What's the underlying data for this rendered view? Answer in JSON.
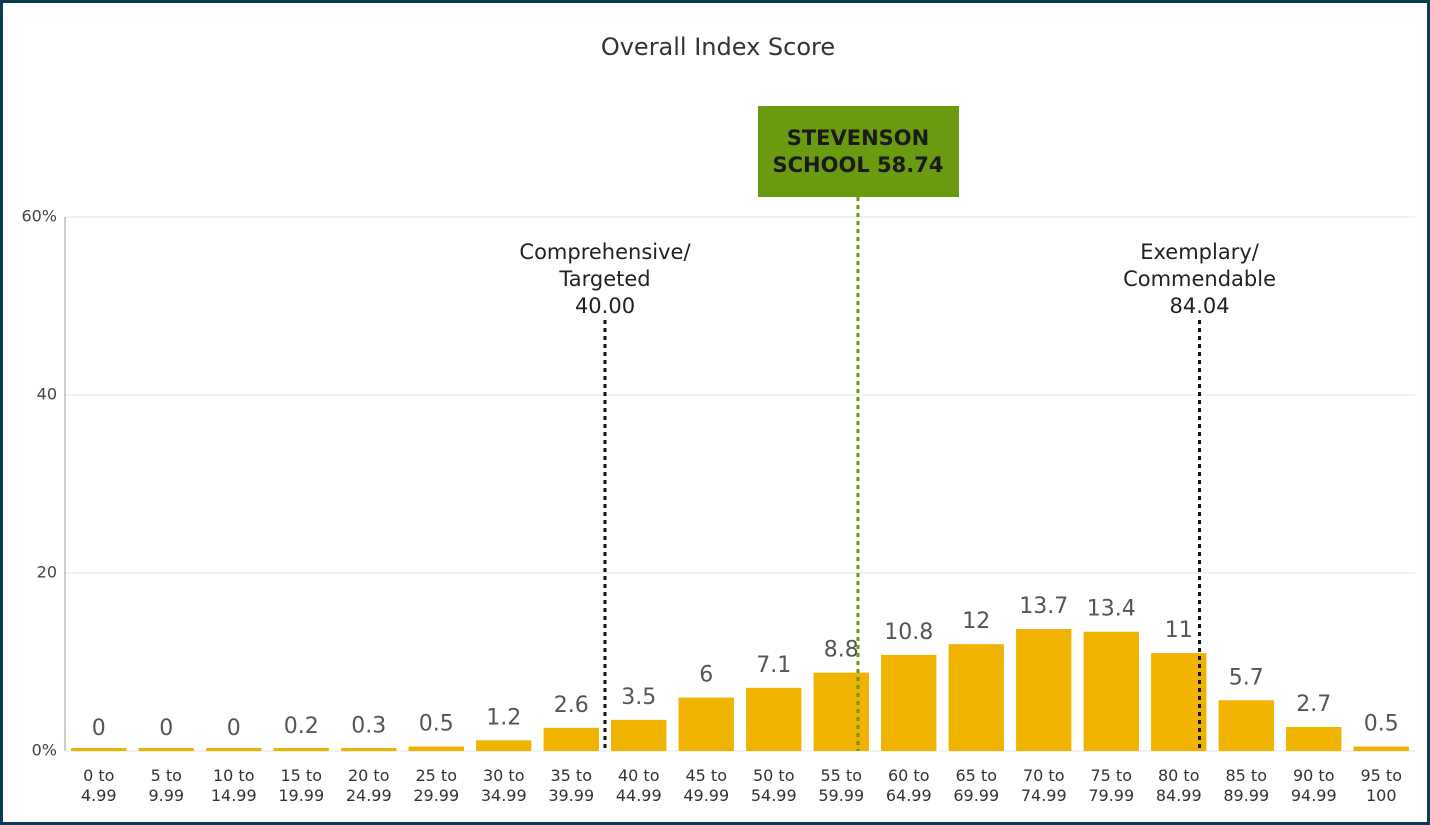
{
  "chart_data": {
    "type": "bar",
    "title": "Overall Index Score",
    "categories": [
      [
        "0 to",
        "4.99"
      ],
      [
        "5 to",
        "9.99"
      ],
      [
        "10 to",
        "14.99"
      ],
      [
        "15 to",
        "19.99"
      ],
      [
        "20 to",
        "24.99"
      ],
      [
        "25 to",
        "29.99"
      ],
      [
        "30 to",
        "34.99"
      ],
      [
        "35 to",
        "39.99"
      ],
      [
        "40 to",
        "44.99"
      ],
      [
        "45 to",
        "49.99"
      ],
      [
        "50 to",
        "54.99"
      ],
      [
        "55 to",
        "59.99"
      ],
      [
        "60 to",
        "64.99"
      ],
      [
        "65 to",
        "69.99"
      ],
      [
        "70 to",
        "74.99"
      ],
      [
        "75 to",
        "79.99"
      ],
      [
        "80 to",
        "84.99"
      ],
      [
        "85 to",
        "89.99"
      ],
      [
        "90 to",
        "94.99"
      ],
      [
        "95 to",
        "100"
      ]
    ],
    "values": [
      0,
      0,
      0,
      0.2,
      0.3,
      0.5,
      1.2,
      2.6,
      3.5,
      6,
      7.1,
      8.8,
      10.8,
      12,
      13.7,
      13.4,
      11,
      5.7,
      2.7,
      0.5
    ],
    "color": "#f0b400",
    "xlim": [
      0,
      100
    ],
    "ylim": [
      0,
      60
    ],
    "yticks": [
      {
        "value": 0,
        "label": "0%"
      },
      20,
      40,
      {
        "value": 60,
        "label": "60%"
      }
    ],
    "grid": true,
    "annotations": [
      {
        "text": [
          "Comprehensive/",
          "Targeted"
        ],
        "value": 40,
        "value_label": "40.00",
        "color": "#111111"
      },
      {
        "text": [
          "Exemplary/",
          "Commendable"
        ],
        "value": 84.04,
        "value_label": "84.04",
        "color": "#111111"
      },
      {
        "text": [
          "STEVENSON",
          "SCHOOL 58.74"
        ],
        "value": 58.74,
        "color": "#6a9a10",
        "boxed": true
      }
    ]
  }
}
